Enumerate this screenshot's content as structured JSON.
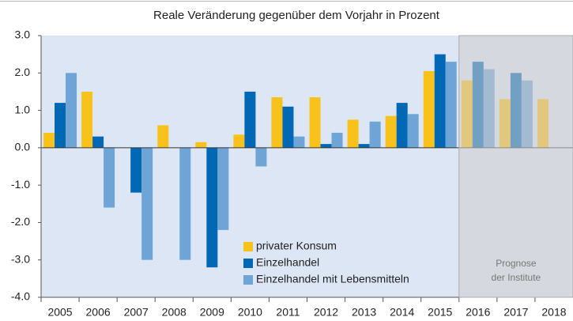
{
  "chart_data": {
    "type": "bar",
    "title": "Reale Veränderung gegenüber dem Vorjahr in Prozent",
    "categories": [
      "2005",
      "2006",
      "2007",
      "2008",
      "2009",
      "2010",
      "2011",
      "2012",
      "2013",
      "2014",
      "2015",
      "2016",
      "2017",
      "2018"
    ],
    "series": [
      {
        "name": "privater Konsum",
        "color": "#f9c21a",
        "values": [
          0.4,
          1.5,
          0,
          0.6,
          0.15,
          0.35,
          1.35,
          1.35,
          0.75,
          0.85,
          2.05,
          1.8,
          1.3,
          1.3
        ]
      },
      {
        "name": "Einzelhandel",
        "color": "#0068b4",
        "values": [
          1.2,
          0.3,
          -1.2,
          0,
          -3.2,
          1.5,
          1.1,
          0.1,
          0.1,
          1.2,
          2.5,
          2.3,
          2.0,
          null
        ]
      },
      {
        "name": "Einzelhandel mit Lebensmitteln",
        "color": "#6fa5d6",
        "values": [
          2.0,
          -1.6,
          -3.0,
          -3.0,
          -2.2,
          -0.5,
          0.3,
          0.4,
          0.7,
          0.9,
          2.3,
          2.1,
          1.8,
          null
        ]
      }
    ],
    "ylim": [
      -4,
      3
    ],
    "yticks": [
      {
        "value": -4,
        "label": "-4.0"
      },
      {
        "value": -3,
        "label": "-3.0"
      },
      {
        "value": -2,
        "label": "-2.0"
      },
      {
        "value": -1,
        "label": "-1.0"
      },
      {
        "value": 0,
        "label": "0.0"
      },
      {
        "value": 1,
        "label": "1.0"
      },
      {
        "value": 2,
        "label": "2.0"
      },
      {
        "value": 3,
        "label": "3.0"
      }
    ],
    "forecast": {
      "from": "2016",
      "label": [
        "Prognose",
        "der Institute"
      ]
    },
    "legend": "bottom-center"
  }
}
